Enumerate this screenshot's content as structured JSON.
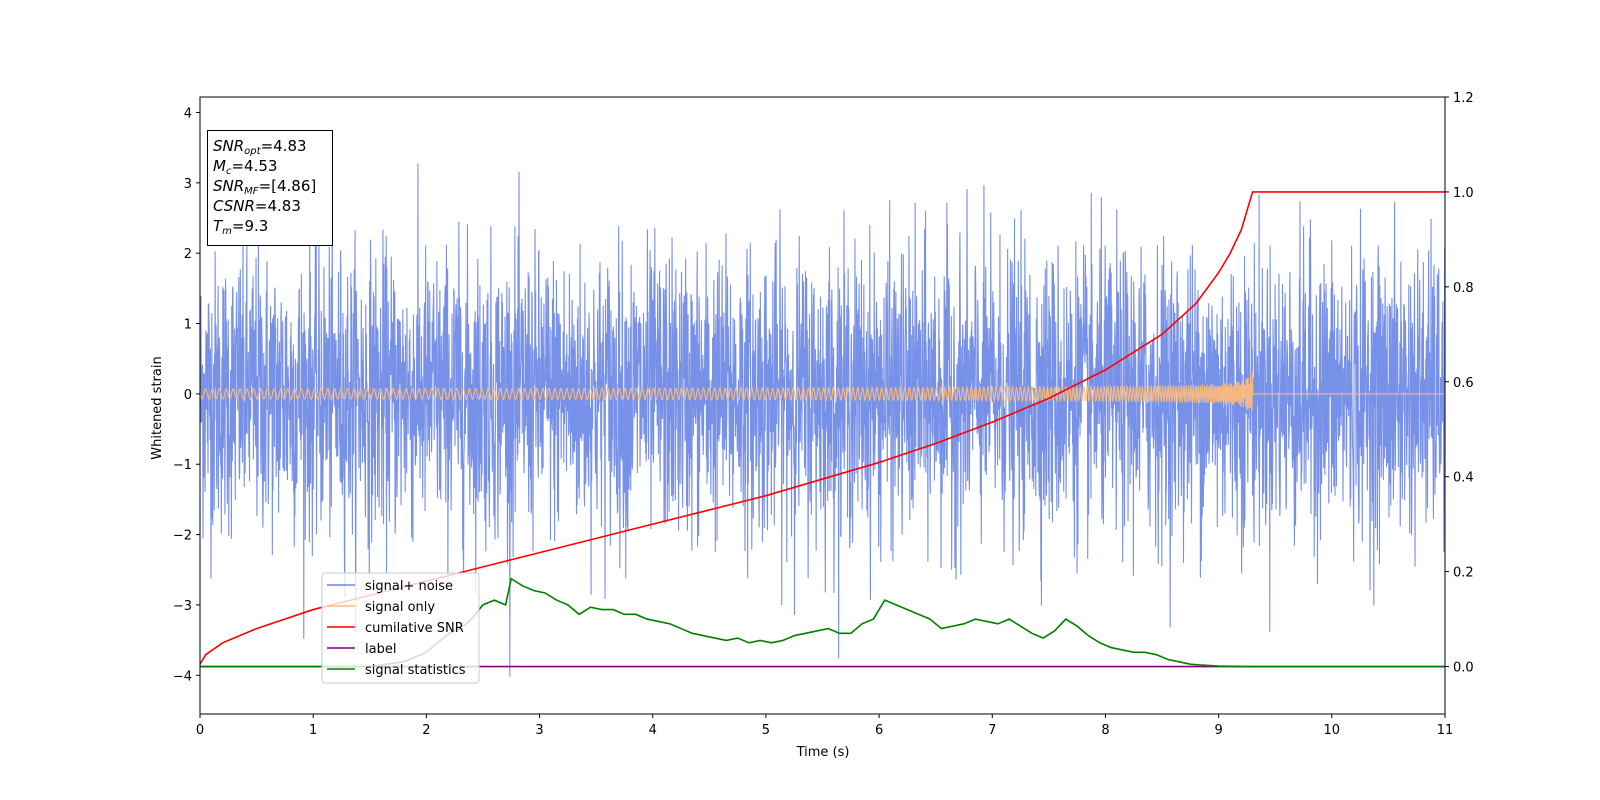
{
  "chart_data": {
    "type": "line",
    "xlabel": "Time (s)",
    "ylabel": "Whitened strain",
    "xlim": [
      0,
      11
    ],
    "ylim_left": [
      -4.55,
      4.22
    ],
    "ylim_right": [
      -0.1,
      1.2
    ],
    "x_ticks": [
      "0",
      "1",
      "2",
      "3",
      "4",
      "5",
      "6",
      "7",
      "8",
      "9",
      "10",
      "11"
    ],
    "y_left_ticks": [
      "4",
      "3",
      "2",
      "1",
      "0",
      "−1",
      "−2",
      "−3",
      "−4"
    ],
    "y_left_tick_values": [
      4,
      3,
      2,
      1,
      0,
      -1,
      -2,
      -3,
      -4
    ],
    "y_right_ticks": [
      "1.2",
      "1.0",
      "0.8",
      "0.6",
      "0.4",
      "0.2",
      "0.0"
    ],
    "y_right_tick_values": [
      1.2,
      1.0,
      0.8,
      0.6,
      0.4,
      0.2,
      0.0
    ],
    "grid": false,
    "legend_position": "lower-left",
    "series": [
      {
        "name": "signal+ noise",
        "color": "#6b87e6",
        "axis": "left",
        "description_values": {
          "std": 1.0,
          "range": [
            -4.1,
            3.85
          ],
          "x_range": [
            0,
            11
          ]
        }
      },
      {
        "name": "signal only",
        "color": "#ffbb78",
        "axis": "left",
        "chirp_end_time": 9.3,
        "peak_amplitude": 0.4
      },
      {
        "name": "cumilative SNR",
        "color": "#ff0000",
        "axis": "right",
        "x": [
          0,
          0.05,
          0.2,
          0.5,
          1,
          1.5,
          2,
          2.5,
          3,
          3.5,
          4,
          4.5,
          5,
          5.5,
          6,
          6.5,
          7,
          7.5,
          8,
          8.5,
          8.8,
          9,
          9.1,
          9.2,
          9.3,
          11
        ],
        "y": [
          0.005,
          0.025,
          0.05,
          0.08,
          0.12,
          0.15,
          0.18,
          0.21,
          0.24,
          0.27,
          0.3,
          0.33,
          0.36,
          0.395,
          0.43,
          0.47,
          0.515,
          0.565,
          0.625,
          0.7,
          0.765,
          0.83,
          0.87,
          0.92,
          1.0,
          1.0
        ]
      },
      {
        "name": "label",
        "color": "#800080",
        "axis": "right",
        "x": [
          0,
          11
        ],
        "y": [
          0.0,
          0.0
        ]
      },
      {
        "name": "signal statistics",
        "color": "#008000",
        "axis": "right",
        "x": [
          0,
          1.5,
          1.8,
          2.0,
          2.1,
          2.2,
          2.3,
          2.4,
          2.5,
          2.6,
          2.7,
          2.75,
          2.85,
          2.95,
          3.05,
          3.15,
          3.25,
          3.35,
          3.45,
          3.55,
          3.65,
          3.75,
          3.85,
          3.95,
          4.05,
          4.15,
          4.25,
          4.35,
          4.45,
          4.55,
          4.65,
          4.75,
          4.85,
          4.95,
          5.05,
          5.15,
          5.25,
          5.35,
          5.45,
          5.55,
          5.65,
          5.75,
          5.85,
          5.95,
          6.05,
          6.15,
          6.25,
          6.35,
          6.45,
          6.55,
          6.65,
          6.75,
          6.85,
          6.95,
          7.05,
          7.15,
          7.25,
          7.35,
          7.45,
          7.55,
          7.65,
          7.75,
          7.85,
          7.95,
          8.05,
          8.15,
          8.25,
          8.35,
          8.45,
          8.55,
          8.65,
          8.75,
          8.85,
          9.0,
          9.2,
          11
        ],
        "y": [
          0.0,
          0.0,
          0.01,
          0.03,
          0.05,
          0.07,
          0.08,
          0.1,
          0.13,
          0.14,
          0.13,
          0.185,
          0.17,
          0.16,
          0.155,
          0.14,
          0.13,
          0.11,
          0.125,
          0.12,
          0.12,
          0.11,
          0.11,
          0.1,
          0.095,
          0.09,
          0.08,
          0.07,
          0.065,
          0.06,
          0.055,
          0.06,
          0.05,
          0.055,
          0.05,
          0.055,
          0.065,
          0.07,
          0.075,
          0.08,
          0.07,
          0.07,
          0.09,
          0.1,
          0.14,
          0.13,
          0.12,
          0.11,
          0.1,
          0.08,
          0.085,
          0.09,
          0.1,
          0.095,
          0.09,
          0.1,
          0.085,
          0.07,
          0.06,
          0.075,
          0.1,
          0.085,
          0.065,
          0.05,
          0.04,
          0.035,
          0.03,
          0.03,
          0.025,
          0.015,
          0.01,
          0.005,
          0.003,
          0.001,
          0.0,
          0.0
        ]
      }
    ],
    "annotation": {
      "lines": [
        {
          "sym": "SNR",
          "sub": "opt",
          "value": "=4.83"
        },
        {
          "sym": "M",
          "sub": "c",
          "value": "=4.53"
        },
        {
          "sym": "SNR",
          "sub": "MF",
          "value": "=[4.86]"
        },
        {
          "sym": "CSNR",
          "sub": "",
          "value": "=4.83"
        },
        {
          "sym": "T",
          "sub": "m",
          "value": "=9.3"
        }
      ]
    }
  }
}
